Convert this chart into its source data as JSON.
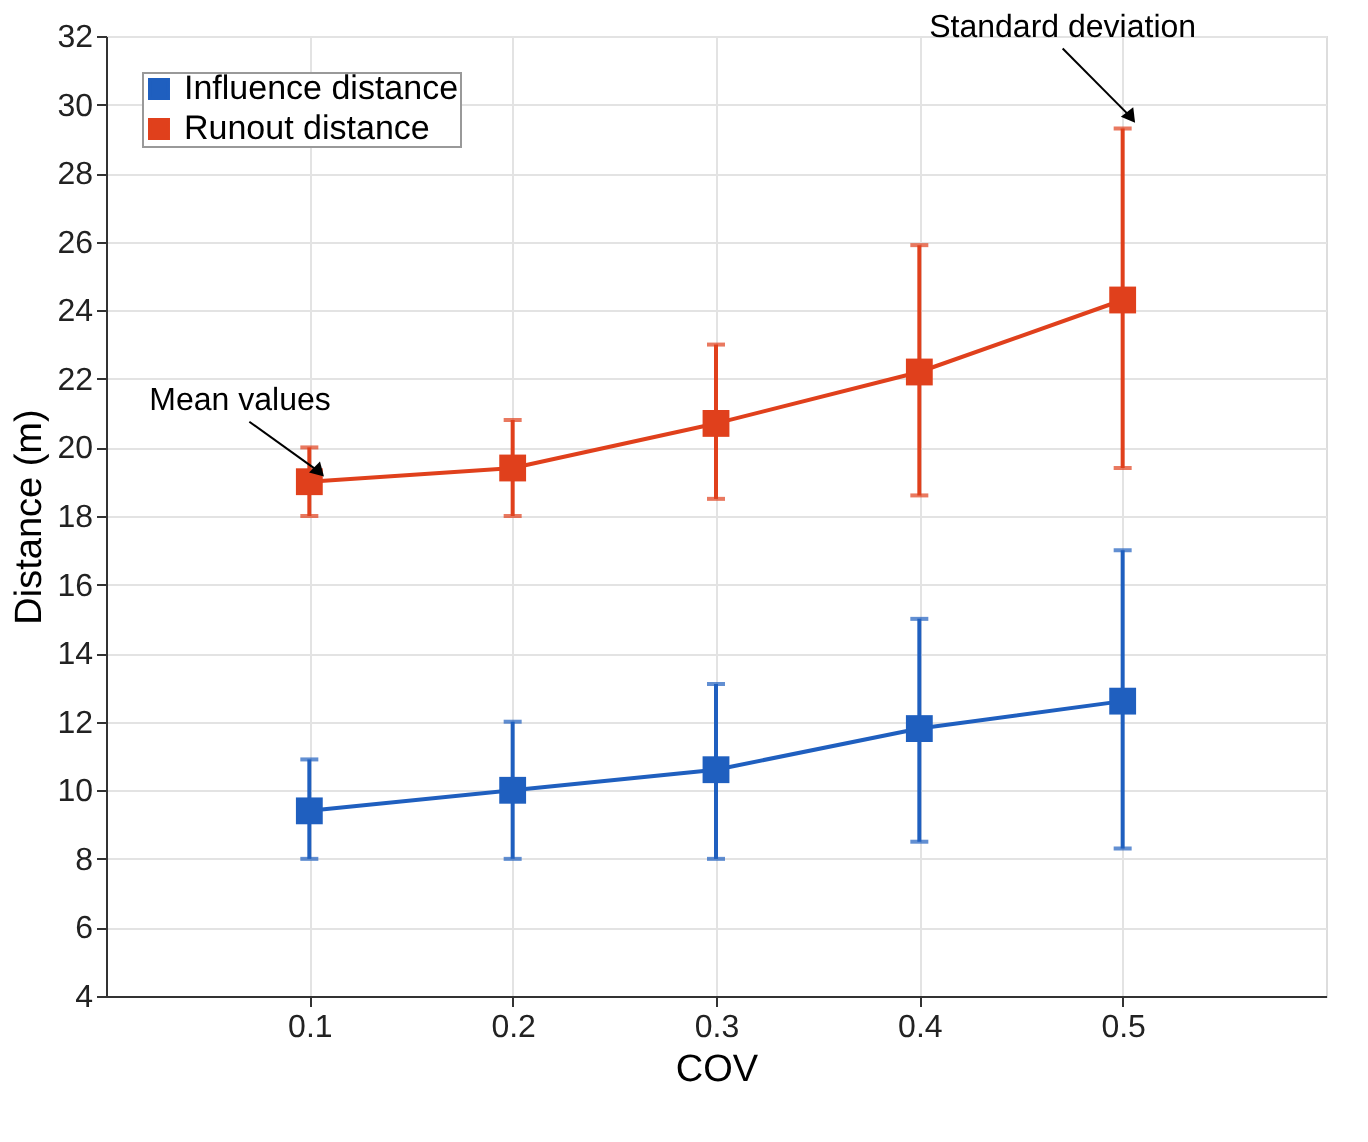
{
  "chart_data": {
    "type": "line",
    "xlabel": "COV",
    "ylabel": "Distance (m)",
    "x": [
      0.1,
      0.2,
      0.3,
      0.4,
      0.5
    ],
    "series": [
      {
        "name": "Influence distance",
        "color": "#1f5fbf",
        "values": [
          9.4,
          10.0,
          10.6,
          11.8,
          12.6
        ],
        "errors": [
          [
            8.0,
            10.9
          ],
          [
            8.0,
            12.0
          ],
          [
            8.0,
            13.1
          ],
          [
            8.5,
            15.0
          ],
          [
            8.3,
            17.0
          ]
        ]
      },
      {
        "name": "Runout distance",
        "color": "#e0401c",
        "values": [
          19.0,
          19.4,
          20.7,
          22.2,
          24.3
        ],
        "errors": [
          [
            18.0,
            20.0
          ],
          [
            18.0,
            20.8
          ],
          [
            18.5,
            23.0
          ],
          [
            18.6,
            25.9
          ],
          [
            19.4,
            29.3
          ]
        ]
      }
    ],
    "xlim": [
      0,
      0.6
    ],
    "xticks": [
      0.1,
      0.2,
      0.3,
      0.4,
      0.5
    ],
    "ylim": [
      4,
      32
    ],
    "yticks": [
      4,
      6,
      8,
      10,
      12,
      14,
      16,
      18,
      20,
      22,
      24,
      26,
      28,
      30,
      32
    ],
    "grid": true,
    "legend": "top left",
    "marker": "square",
    "line_style": "solid",
    "annotations": [
      {
        "text": "Mean values",
        "x": 0.1,
        "y": 19.0
      },
      {
        "text": "Standard deviation",
        "x": 0.5,
        "y": 29.3
      }
    ]
  }
}
